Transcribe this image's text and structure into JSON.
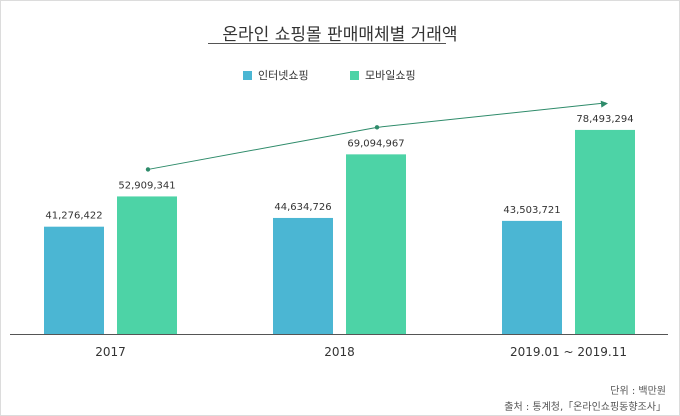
{
  "chart_data": {
    "type": "bar",
    "title": "온라인 쇼핑몰 판매매체별 거래액",
    "categories": [
      "2017",
      "2018",
      "2019.01 ~ 2019.11"
    ],
    "series": [
      {
        "name": "인터넷쇼핑",
        "color": "#4bb6d3",
        "values": [
          41276422,
          44634726,
          43503721
        ]
      },
      {
        "name": "모바일쇼핑",
        "color": "#4dd3a6",
        "values": [
          52909341,
          69094967,
          78493294
        ]
      }
    ],
    "data_labels": [
      [
        "41,276,422",
        "52,909,341"
      ],
      [
        "44,634,726",
        "69,094,967"
      ],
      [
        "43,503,721",
        "78,493,294"
      ]
    ],
    "trend_line": {
      "series": "모바일쇼핑",
      "color": "#2e8b6a"
    },
    "legend_position": "top-center",
    "grid": false
  },
  "footer": {
    "unit": "단위 : 백만원",
    "source": "출처 : 통계청,「온라인쇼핑동향조사」"
  }
}
